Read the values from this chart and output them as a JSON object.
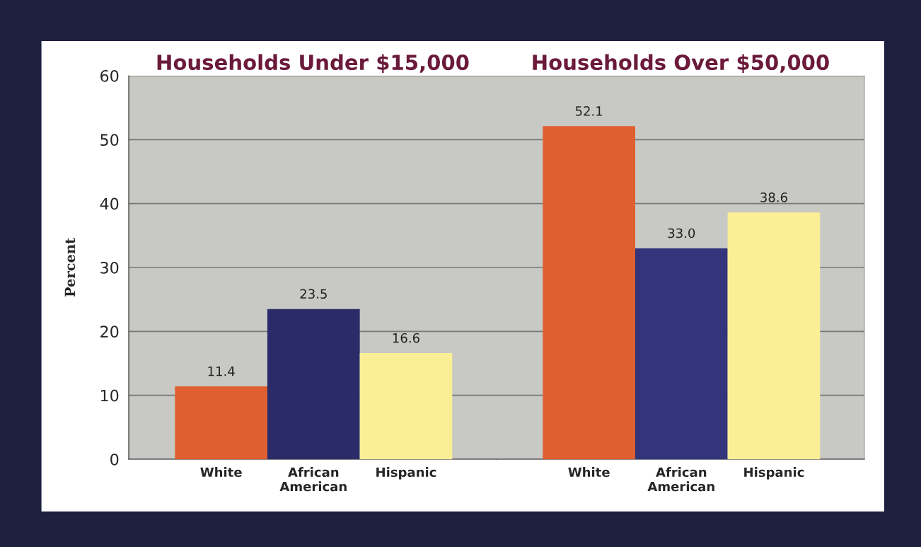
{
  "chart_data": [
    {
      "type": "bar",
      "title": "Households Under $15,000",
      "ylabel": "Percent",
      "categories": [
        "White",
        "African American",
        "Hispanic"
      ],
      "values": [
        11.4,
        23.5,
        16.6
      ],
      "colors": [
        "#e05f30",
        "#2b2b69",
        "#fbef95"
      ],
      "value_labels": [
        "11.4",
        "23.5",
        "16.6"
      ],
      "ylim": [
        0,
        60
      ],
      "yticks": [
        0,
        10,
        20,
        30,
        40,
        50,
        60
      ],
      "grid": "y"
    },
    {
      "type": "bar",
      "title": "Households Over $50,000",
      "categories": [
        "White",
        "African American",
        "Hispanic"
      ],
      "values": [
        52.1,
        33.0,
        38.6
      ],
      "colors": [
        "#e05f30",
        "#33347a",
        "#fbef95"
      ],
      "value_labels": [
        "52.1",
        "33.0",
        "38.6"
      ],
      "ylim": [
        0,
        60
      ],
      "yticks": [
        0,
        10,
        20,
        30,
        40,
        50,
        60
      ],
      "grid": "y",
      "tick_labels": "x"
    }
  ]
}
